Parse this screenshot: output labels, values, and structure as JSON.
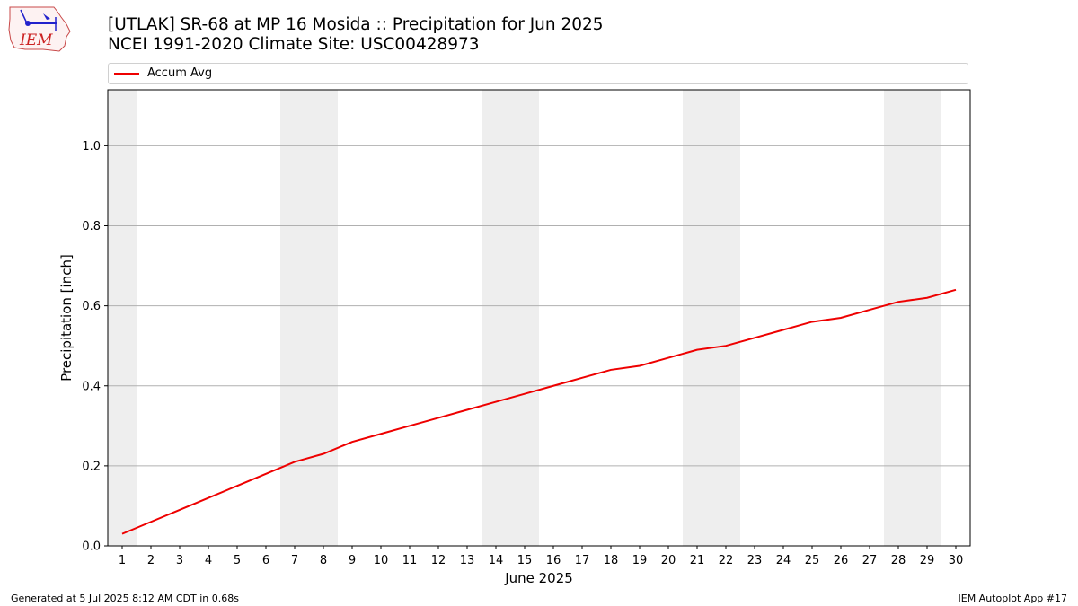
{
  "header": {
    "title_line1": "[UTLAK] SR-68 at MP 16 Mosida  :: Precipitation for Jun 2025",
    "title_line2": "NCEI 1991-2020 Climate Site: USC00428973"
  },
  "logo": {
    "text": "IEM"
  },
  "footer": {
    "generated": "Generated at 5 Jul 2025 8:12 AM CDT in 0.68s",
    "app": "IEM Autoplot App #17"
  },
  "colors": {
    "line": "#ee0000",
    "weekend_band": "#eeeeee",
    "grid": "#b0b0b0"
  },
  "chart_data": {
    "type": "line",
    "title": "[UTLAK] SR-68 at MP 16 Mosida  :: Precipitation for Jun 2025",
    "subtitle": "NCEI 1991-2020 Climate Site: USC00428973",
    "xlabel": "June 2025",
    "ylabel": "Precipitation [inch]",
    "xlim": [
      0.5,
      30.5
    ],
    "ylim": [
      0,
      1.14
    ],
    "yticks": [
      0.0,
      0.2,
      0.4,
      0.6,
      0.8,
      1.0
    ],
    "ytick_labels": [
      "0.0",
      "0.2",
      "0.4",
      "0.6",
      "0.8",
      "1.0"
    ],
    "x": [
      1,
      2,
      3,
      4,
      5,
      6,
      7,
      8,
      9,
      10,
      11,
      12,
      13,
      14,
      15,
      16,
      17,
      18,
      19,
      20,
      21,
      22,
      23,
      24,
      25,
      26,
      27,
      28,
      29,
      30
    ],
    "x_labels": [
      "1",
      "2",
      "3",
      "4",
      "5",
      "6",
      "7",
      "8",
      "9",
      "10",
      "11",
      "12",
      "13",
      "14",
      "15",
      "16",
      "17",
      "18",
      "19",
      "20",
      "21",
      "22",
      "23",
      "24",
      "25",
      "26",
      "27",
      "28",
      "29",
      "30"
    ],
    "series": [
      {
        "name": "Accum Avg",
        "values": [
          0.03,
          0.06,
          0.09,
          0.12,
          0.15,
          0.18,
          0.21,
          0.23,
          0.26,
          0.28,
          0.3,
          0.32,
          0.34,
          0.36,
          0.38,
          0.4,
          0.42,
          0.44,
          0.45,
          0.47,
          0.49,
          0.5,
          0.52,
          0.54,
          0.56,
          0.57,
          0.59,
          0.61,
          0.62,
          0.64
        ]
      }
    ],
    "weekend_days": [
      1,
      7,
      8,
      14,
      15,
      21,
      22,
      28,
      29
    ],
    "grid": "y-major",
    "legend_position": "top"
  }
}
